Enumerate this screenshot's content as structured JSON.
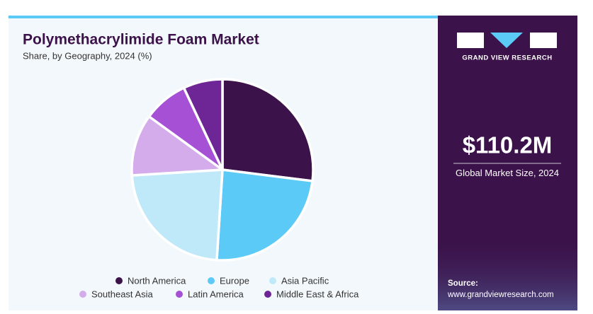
{
  "chart_data": {
    "type": "pie",
    "title": "Polymethacrylimide Foam Market",
    "subtitle": "Share, by Geography, 2024 (%)",
    "categories": [
      "North America",
      "Europe",
      "Asia Pacific",
      "Southeast Asia",
      "Latin America",
      "Middle East & Africa"
    ],
    "values": [
      27,
      24,
      23,
      11,
      8,
      7
    ],
    "colors": [
      "#3b1249",
      "#5ccaf6",
      "#bfe9f9",
      "#d4abeb",
      "#a650d6",
      "#6e2596"
    ]
  },
  "sidebar": {
    "brand": "GRAND VIEW RESEARCH",
    "market_size": "$110.2M",
    "market_label": "Global Market Size, 2024",
    "source_label": "Source:",
    "source_url": "www.grandviewresearch.com"
  }
}
